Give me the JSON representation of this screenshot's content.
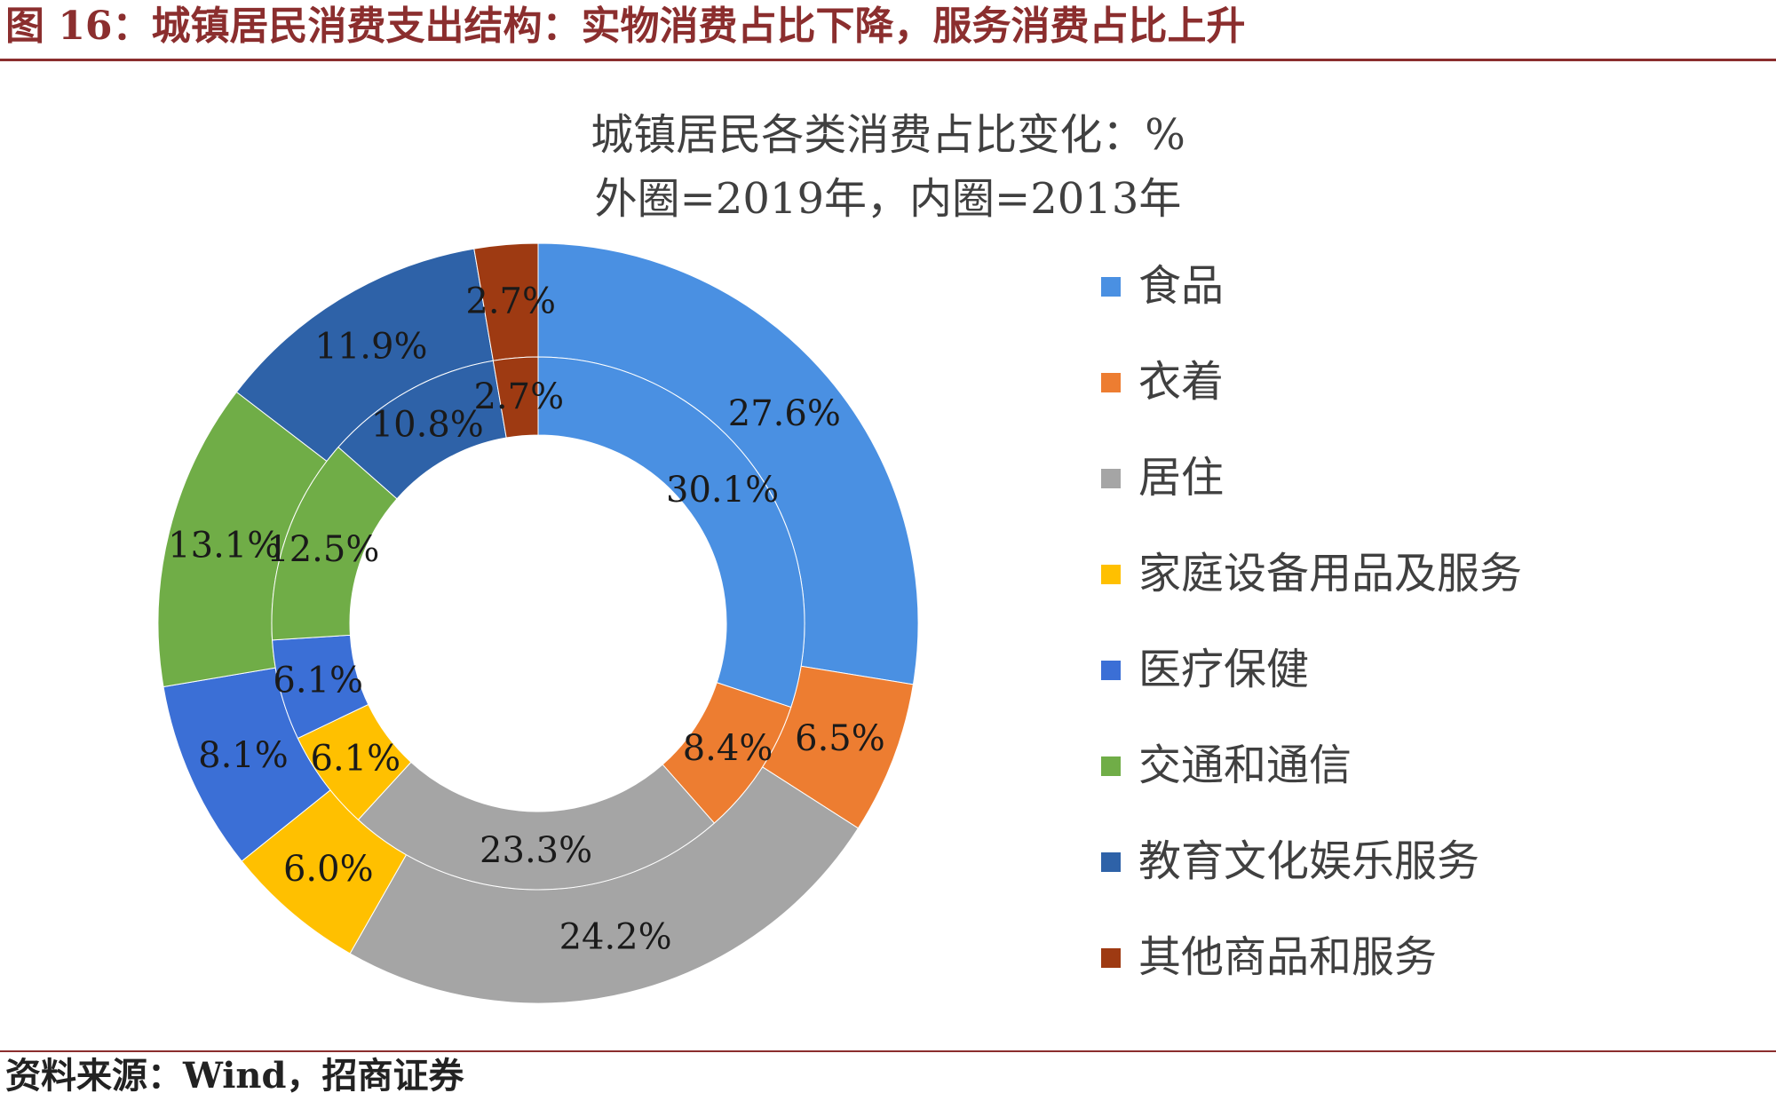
{
  "figure_title": "图 16：城镇居民消费支出结构：实物消费占比下降，服务消费占比上升",
  "source_text": "资料来源：Wind，招商证券",
  "chart_data": {
    "type": "donut",
    "title_line1": "城镇居民各类消费占比变化：%",
    "title_line2": "外圈=2019年，内圈=2013年",
    "legend_position": "right",
    "categories": [
      "食品",
      "衣着",
      "居住",
      "家庭设备用品及服务",
      "医疗保健",
      "交通和通信",
      "教育文化娱乐服务",
      "其他商品和服务"
    ],
    "colors": [
      "#4A90E2",
      "#ED7D31",
      "#A5A5A5",
      "#FFC000",
      "#3B6FD6",
      "#70AD47",
      "#2E62A8",
      "#9E3A12"
    ],
    "series": [
      {
        "name": "2019年",
        "ring": "outer",
        "values": [
          27.6,
          6.5,
          24.2,
          6.0,
          8.1,
          13.1,
          11.9,
          2.7
        ],
        "labels": [
          "27.6%",
          "6.5%",
          "24.2%",
          "6.0%",
          "8.1%",
          "13.1%",
          "11.9%",
          "2.7%"
        ]
      },
      {
        "name": "2013年",
        "ring": "inner",
        "values": [
          30.1,
          8.4,
          23.3,
          6.1,
          6.1,
          12.5,
          10.8,
          2.7
        ],
        "labels": [
          "30.1%",
          "8.4%",
          "23.3%",
          "6.1%",
          "6.1%",
          "12.5%",
          "10.8%",
          "2.7%"
        ]
      }
    ]
  }
}
